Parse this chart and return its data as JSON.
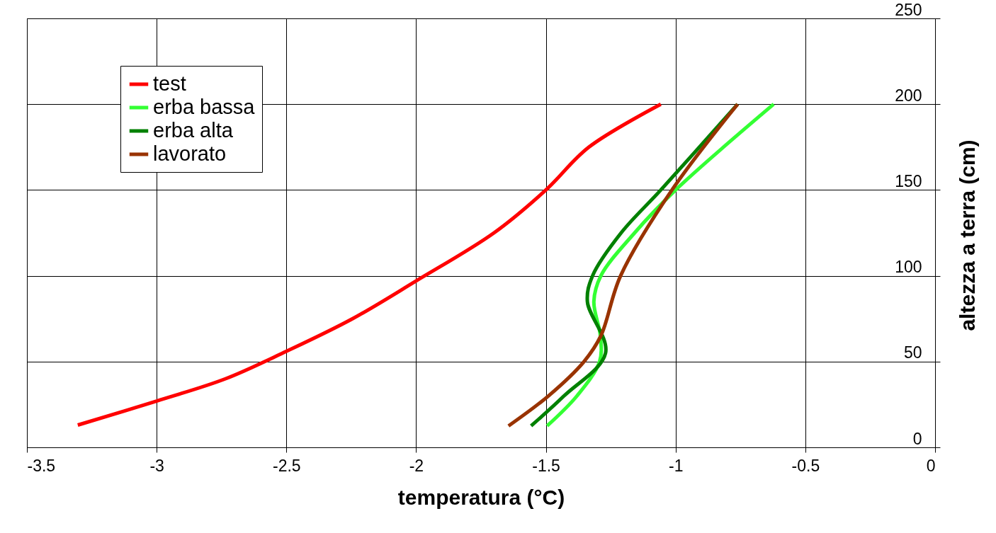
{
  "chart_data": {
    "type": "line",
    "xlabel": "temperatura (°C)",
    "ylabel": "altezza a terra (cm)",
    "xlim": [
      -3.5,
      0
    ],
    "xticks": [
      -3.5,
      -3,
      -2.5,
      -2,
      -1.5,
      -1,
      -0.5,
      0
    ],
    "ylim": [
      0,
      250
    ],
    "yticks": [
      0,
      50,
      100,
      150,
      200,
      250
    ],
    "grid": true,
    "legend": "top left",
    "marker": "none",
    "line_style": "solid",
    "series": [
      {
        "name": "test",
        "color": "#ff0000",
        "x": [
          -3.304,
          -3.0,
          -2.734,
          -2.5,
          -2.245,
          -2.0,
          -1.7,
          -1.5,
          -1.334,
          -1.057
        ],
        "values": [
          13,
          27,
          40,
          56,
          75,
          97,
          125,
          150,
          175,
          200
        ]
      },
      {
        "name": "erba bassa",
        "color": "#33ff33",
        "x": [
          -1.495,
          -1.38,
          -1.293,
          -1.29,
          -1.315,
          -1.288,
          -1.158,
          -1.0,
          -0.622
        ],
        "values": [
          12.5,
          30,
          50,
          65,
          85,
          100,
          125,
          150,
          200
        ]
      },
      {
        "name": "erba alta",
        "color": "#008000",
        "x": [
          -1.557,
          -1.43,
          -1.27,
          -1.34,
          -1.32,
          -1.21,
          -1.057,
          -0.761
        ],
        "values": [
          12.5,
          30,
          55,
          85,
          100,
          125,
          150,
          200
        ]
      },
      {
        "name": "lavorato",
        "color": "#993300",
        "x": [
          -1.644,
          -1.49,
          -1.353,
          -1.288,
          -1.212,
          -1.014,
          -0.761
        ],
        "values": [
          12.5,
          30,
          50,
          65,
          100,
          150,
          200
        ]
      }
    ]
  }
}
